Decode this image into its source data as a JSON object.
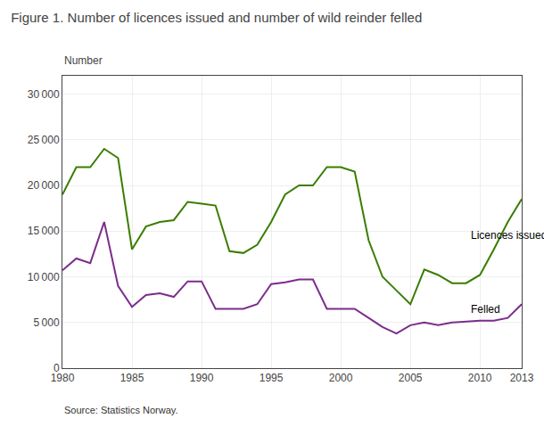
{
  "chart_data": {
    "type": "line",
    "title": "Figure 1. Number of licences issued and number of wild reinder felled",
    "ylabel": "Number",
    "source": "Source: Statistics Norway.",
    "x": [
      1980,
      1981,
      1982,
      1983,
      1984,
      1985,
      1986,
      1987,
      1988,
      1989,
      1990,
      1991,
      1992,
      1993,
      1994,
      1995,
      1996,
      1997,
      1998,
      1999,
      2000,
      2001,
      2002,
      2003,
      2004,
      2005,
      2006,
      2007,
      2008,
      2009,
      2010,
      2011,
      2012,
      2013
    ],
    "series": [
      {
        "name": "Licences issued",
        "color": "#3a7d00",
        "values": [
          19000,
          22000,
          22000,
          24000,
          23000,
          13000,
          15500,
          16000,
          16200,
          18200,
          18000,
          17800,
          12800,
          12600,
          13500,
          16000,
          19000,
          20000,
          20000,
          22000,
          22000,
          21500,
          14000,
          10000,
          8500,
          7000,
          10800,
          10200,
          9300,
          9300,
          10200,
          13000,
          16000,
          18500
        ]
      },
      {
        "name": "Felled",
        "color": "#7b2d8b",
        "values": [
          10700,
          12000,
          11500,
          16000,
          9000,
          6700,
          8000,
          8200,
          7800,
          9500,
          9500,
          6500,
          6500,
          6500,
          7000,
          9200,
          9400,
          9700,
          9700,
          6500,
          6500,
          6500,
          5500,
          4500,
          3800,
          4700,
          5000,
          4700,
          5000,
          5100,
          5200,
          5200,
          5500,
          7000
        ]
      }
    ],
    "annotations": [
      {
        "text": "Licences issued",
        "x": 2009.2,
        "y": 14500
      },
      {
        "text": "Felled",
        "x": 2009.2,
        "y": 6400
      }
    ],
    "xlim": [
      1980,
      2013
    ],
    "xticks": [
      1980,
      1985,
      1990,
      1995,
      2000,
      2005,
      2010,
      2013
    ],
    "ylim": [
      0,
      32000
    ],
    "yticks": [
      0,
      {
        "value": 5000,
        "label": "5 000"
      },
      {
        "value": 10000,
        "label": "10 000"
      },
      {
        "value": 15000,
        "label": "15 000"
      },
      {
        "value": 20000,
        "label": "20 000"
      },
      {
        "value": 25000,
        "label": "25 000"
      },
      {
        "value": 30000,
        "label": "30 000"
      }
    ],
    "grid": true
  }
}
